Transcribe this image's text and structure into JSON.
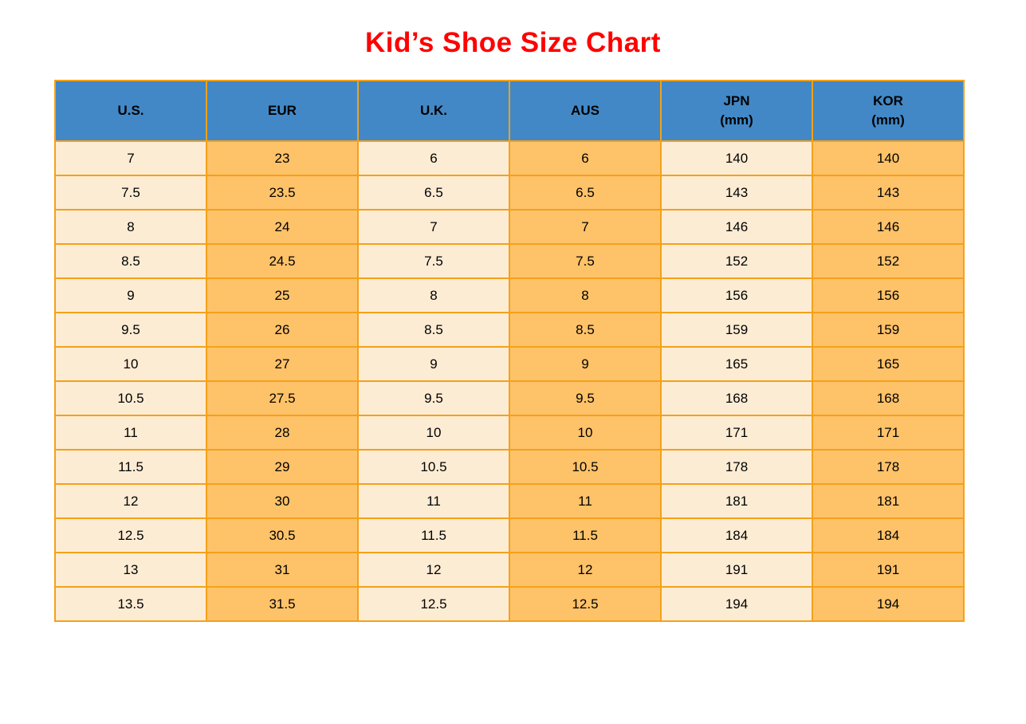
{
  "page": {
    "title": "Kid’s Shoe Size Chart",
    "title_color": "#FF0000",
    "background_color": "#FFFFFF"
  },
  "table": {
    "style": {
      "header_bg": "#4288C6",
      "header_text_color": "#000000",
      "border_color": "#F4A118",
      "light_cell_bg": "#FDECD4",
      "orange_cell_bg": "#FEC269"
    },
    "columns": [
      {
        "label": "U.S.",
        "sub": ""
      },
      {
        "label": "EUR",
        "sub": ""
      },
      {
        "label": "U.K.",
        "sub": ""
      },
      {
        "label": "AUS",
        "sub": ""
      },
      {
        "label": "JPN",
        "sub": "(mm)"
      },
      {
        "label": "KOR",
        "sub": "(mm)"
      }
    ],
    "rows": [
      [
        "7",
        "23",
        "6",
        "6",
        "140",
        "140"
      ],
      [
        "7.5",
        "23.5",
        "6.5",
        "6.5",
        "143",
        "143"
      ],
      [
        "8",
        "24",
        "7",
        "7",
        "146",
        "146"
      ],
      [
        "8.5",
        "24.5",
        "7.5",
        "7.5",
        "152",
        "152"
      ],
      [
        "9",
        "25",
        "8",
        "8",
        "156",
        "156"
      ],
      [
        "9.5",
        "26",
        "8.5",
        "8.5",
        "159",
        "159"
      ],
      [
        "10",
        "27",
        "9",
        "9",
        "165",
        "165"
      ],
      [
        "10.5",
        "27.5",
        "9.5",
        "9.5",
        "168",
        "168"
      ],
      [
        "11",
        "28",
        "10",
        "10",
        "171",
        "171"
      ],
      [
        "11.5",
        "29",
        "10.5",
        "10.5",
        "178",
        "178"
      ],
      [
        "12",
        "30",
        "11",
        "11",
        "181",
        "181"
      ],
      [
        "12.5",
        "30.5",
        "11.5",
        "11.5",
        "184",
        "184"
      ],
      [
        "13",
        "31",
        "12",
        "12",
        "191",
        "191"
      ],
      [
        "13.5",
        "31.5",
        "12.5",
        "12.5",
        "194",
        "194"
      ]
    ]
  },
  "chart_data": {
    "type": "table",
    "title": "Kid’s Shoe Size Chart",
    "columns": [
      "U.S.",
      "EUR",
      "U.K.",
      "AUS",
      "JPN (mm)",
      "KOR (mm)"
    ],
    "rows": [
      [
        7,
        23,
        6,
        6,
        140,
        140
      ],
      [
        7.5,
        23.5,
        6.5,
        6.5,
        143,
        143
      ],
      [
        8,
        24,
        7,
        7,
        146,
        146
      ],
      [
        8.5,
        24.5,
        7.5,
        7.5,
        152,
        152
      ],
      [
        9,
        25,
        8,
        8,
        156,
        156
      ],
      [
        9.5,
        26,
        8.5,
        8.5,
        159,
        159
      ],
      [
        10,
        27,
        9,
        9,
        165,
        165
      ],
      [
        10.5,
        27.5,
        9.5,
        9.5,
        168,
        168
      ],
      [
        11,
        28,
        10,
        10,
        171,
        171
      ],
      [
        11.5,
        29,
        10.5,
        10.5,
        178,
        178
      ],
      [
        12,
        30,
        11,
        11,
        181,
        181
      ],
      [
        12.5,
        30.5,
        11.5,
        11.5,
        184,
        184
      ],
      [
        13,
        31,
        12,
        12,
        191,
        191
      ],
      [
        13.5,
        31.5,
        12.5,
        12.5,
        194,
        194
      ]
    ]
  }
}
